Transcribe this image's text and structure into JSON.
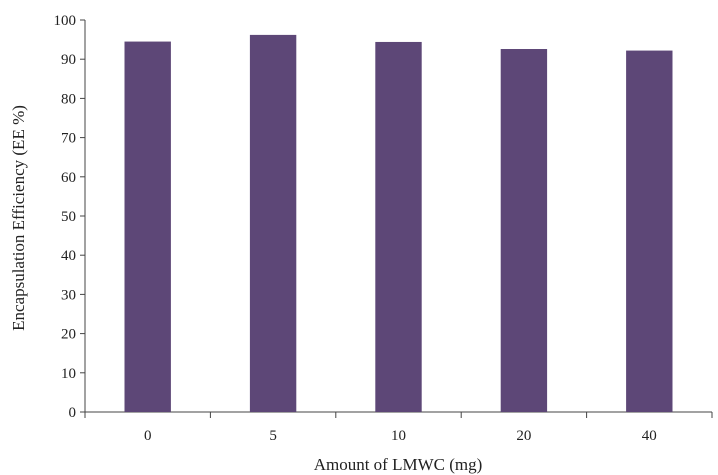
{
  "chart_data": {
    "type": "bar",
    "categories": [
      "0",
      "5",
      "10",
      "20",
      "40"
    ],
    "values": [
      94.5,
      96.2,
      94.4,
      92.6,
      92.2
    ],
    "title": "",
    "xlabel": "Amount of LMWC (mg)",
    "ylabel": "Encapsulation Efficiency (EE %)",
    "ylim": [
      0,
      100
    ],
    "yticks": [
      0,
      10,
      20,
      30,
      40,
      50,
      60,
      70,
      80,
      90,
      100
    ],
    "grid": false,
    "legend": "none",
    "bar_color": "#5d4777"
  }
}
